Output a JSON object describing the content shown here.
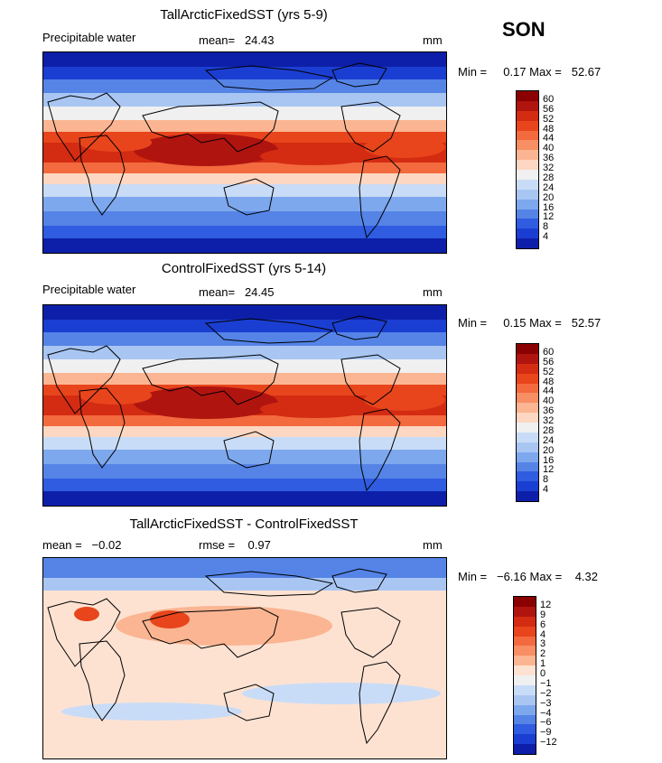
{
  "season": "SON",
  "panels": [
    {
      "title": "TallArcticFixedSST (yrs 5-9)",
      "left_label": "Precipitable water",
      "stat1": "mean=   24.43",
      "stat2": "",
      "units": "mm",
      "minmax": "Min =     0.17 Max =   52.67",
      "kind": "abs",
      "colorbar": {
        "ticks": [
          "60",
          "56",
          "52",
          "48",
          "44",
          "40",
          "36",
          "32",
          "28",
          "24",
          "20",
          "16",
          "12",
          "8",
          "4"
        ],
        "colors": [
          "#8b0000",
          "#b0140f",
          "#d32c12",
          "#e8451c",
          "#f36a3e",
          "#f88e64",
          "#fbb592",
          "#fdd7c2",
          "#f0f0f0",
          "#c9dcf7",
          "#a9c6f3",
          "#7ea8ee",
          "#5584e6",
          "#2f5ce0",
          "#1b3ed2",
          "#0d1fa8"
        ]
      }
    },
    {
      "title": "ControlFixedSST (yrs 5-14)",
      "left_label": "Precipitable water",
      "stat1": "mean=   24.45",
      "stat2": "",
      "units": "mm",
      "minmax": "Min =     0.15 Max =   52.57",
      "kind": "abs",
      "colorbar": {
        "ticks": [
          "60",
          "56",
          "52",
          "48",
          "44",
          "40",
          "36",
          "32",
          "28",
          "24",
          "20",
          "16",
          "12",
          "8",
          "4"
        ],
        "colors": [
          "#8b0000",
          "#b0140f",
          "#d32c12",
          "#e8451c",
          "#f36a3e",
          "#f88e64",
          "#fbb592",
          "#fdd7c2",
          "#f0f0f0",
          "#c9dcf7",
          "#a9c6f3",
          "#7ea8ee",
          "#5584e6",
          "#2f5ce0",
          "#1b3ed2",
          "#0d1fa8"
        ]
      }
    },
    {
      "title": "TallArcticFixedSST - ControlFixedSST",
      "left_label": "mean =   −0.02",
      "stat1": "rmse =    0.97",
      "stat2": "",
      "units": "mm",
      "minmax": "Min =   −6.16 Max =    4.32",
      "kind": "diff",
      "colorbar": {
        "ticks": [
          "12",
          "9",
          "6",
          "4",
          "3",
          "2",
          "1",
          "0",
          "−1",
          "−2",
          "−3",
          "−4",
          "−6",
          "−9",
          "−12"
        ],
        "colors": [
          "#8b0000",
          "#b0140f",
          "#d32c12",
          "#e8451c",
          "#f36a3e",
          "#f88e64",
          "#fbb592",
          "#fde2d2",
          "#f0f0f0",
          "#c9dcf7",
          "#a9c6f3",
          "#7ea8ee",
          "#5584e6",
          "#2f5ce0",
          "#1b3ed2",
          "#0d1fa8"
        ]
      }
    }
  ]
}
